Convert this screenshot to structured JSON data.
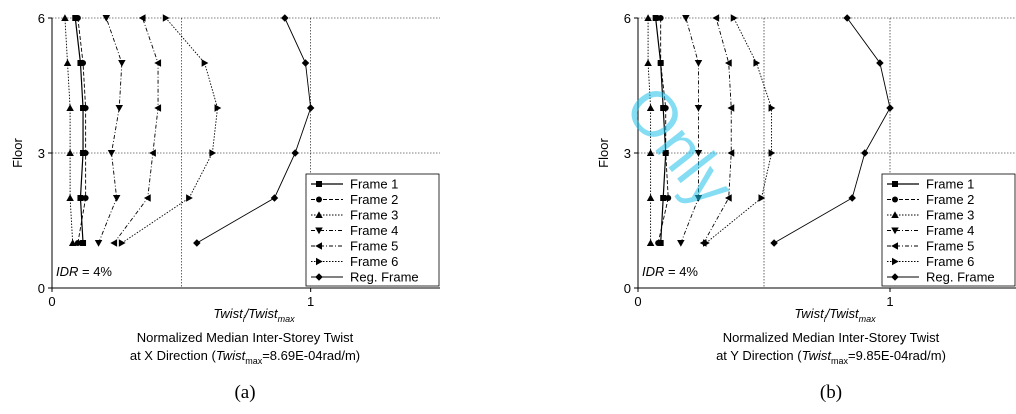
{
  "watermark": "Only",
  "chart_data": [
    {
      "type": "line",
      "panel_caption": "(a)",
      "ylabel": "Floor",
      "xlabel_main": "Twist",
      "xlabel_sub": "i",
      "xlabel_den": "/Twist",
      "xlabel_den_sub": "max",
      "title_line1": "Normalized Median Inter-Storey Twist",
      "title_line2_prefix": "at X Direction (",
      "title_line2_var": "Twist",
      "title_line2_sub": "max",
      "title_line2_suffix": "=8.69E-04rad/m)",
      "annotation_var": "IDR",
      "annotation_value": " = 4%",
      "xlim": [
        0,
        1.5
      ],
      "ylim": [
        0,
        6
      ],
      "x_ticks": [
        0,
        1
      ],
      "y_ticks": [
        0,
        3,
        6
      ],
      "grid_x": [
        0.5,
        1
      ],
      "grid_y": [
        3,
        6
      ],
      "legend_position": "bottom-right",
      "series": [
        {
          "name": "Frame 1",
          "marker": "square",
          "dash": "solid",
          "x": [
            0.12,
            0.11,
            0.12,
            0.12,
            0.11,
            0.09
          ],
          "y": [
            1,
            2,
            3,
            4,
            5,
            6
          ]
        },
        {
          "name": "Frame 2",
          "marker": "circle",
          "dash": "dash",
          "x": [
            0.1,
            0.13,
            0.13,
            0.13,
            0.12,
            0.1
          ],
          "y": [
            1,
            2,
            3,
            4,
            5,
            6
          ]
        },
        {
          "name": "Frame 3",
          "marker": "triangle-up",
          "dash": "dot",
          "x": [
            0.08,
            0.07,
            0.07,
            0.07,
            0.06,
            0.05
          ],
          "y": [
            1,
            2,
            3,
            4,
            5,
            6
          ]
        },
        {
          "name": "Frame 4",
          "marker": "triangle-down",
          "dash": "dashdot",
          "x": [
            0.18,
            0.25,
            0.23,
            0.26,
            0.27,
            0.21
          ],
          "y": [
            1,
            2,
            3,
            4,
            5,
            6
          ]
        },
        {
          "name": "Frame 5",
          "marker": "triangle-left",
          "dash": "dashdot",
          "x": [
            0.24,
            0.37,
            0.39,
            0.41,
            0.41,
            0.35
          ],
          "y": [
            1,
            2,
            3,
            4,
            5,
            6
          ]
        },
        {
          "name": "Frame 6",
          "marker": "triangle-right",
          "dash": "dot",
          "x": [
            0.27,
            0.53,
            0.62,
            0.64,
            0.59,
            0.44
          ],
          "y": [
            1,
            2,
            3,
            4,
            5,
            6
          ]
        },
        {
          "name": "Reg. Frame",
          "marker": "diamond",
          "dash": "solid-thin",
          "x": [
            0.56,
            0.86,
            0.94,
            1.0,
            0.98,
            0.9
          ],
          "y": [
            1,
            2,
            3,
            4,
            5,
            6
          ]
        }
      ]
    },
    {
      "type": "line",
      "panel_caption": "(b)",
      "ylabel": "Floor",
      "xlabel_main": "Twist",
      "xlabel_sub": "i",
      "xlabel_den": "/Twist",
      "xlabel_den_sub": "max",
      "title_line1": "Normalized Median Inter-Storey Twist",
      "title_line2_prefix": "at Y Direction (",
      "title_line2_var": "Twist",
      "title_line2_sub": "max",
      "title_line2_suffix": "=9.85E-04rad/m)",
      "annotation_var": "IDR",
      "annotation_value": " = 4%",
      "xlim": [
        0,
        1.5
      ],
      "ylim": [
        0,
        6
      ],
      "x_ticks": [
        0,
        1
      ],
      "y_ticks": [
        0,
        3,
        6
      ],
      "grid_x": [
        0.5,
        1
      ],
      "grid_y": [
        3,
        6
      ],
      "legend_position": "bottom-right",
      "series": [
        {
          "name": "Frame 1",
          "marker": "square",
          "dash": "solid",
          "x": [
            0.09,
            0.1,
            0.11,
            0.1,
            0.09,
            0.07
          ],
          "y": [
            1,
            2,
            3,
            4,
            5,
            6
          ]
        },
        {
          "name": "Frame 2",
          "marker": "circle",
          "dash": "dash",
          "x": [
            0.08,
            0.12,
            0.11,
            0.11,
            0.09,
            0.09
          ],
          "y": [
            1,
            2,
            3,
            4,
            5,
            6
          ]
        },
        {
          "name": "Frame 3",
          "marker": "triangle-up",
          "dash": "dot",
          "x": [
            0.05,
            0.05,
            0.05,
            0.05,
            0.04,
            0.04
          ],
          "y": [
            1,
            2,
            3,
            4,
            5,
            6
          ]
        },
        {
          "name": "Frame 4",
          "marker": "triangle-down",
          "dash": "dashdot",
          "x": [
            0.17,
            0.24,
            0.24,
            0.24,
            0.24,
            0.19
          ],
          "y": [
            1,
            2,
            3,
            4,
            5,
            6
          ]
        },
        {
          "name": "Frame 5",
          "marker": "triangle-left",
          "dash": "dashdot",
          "x": [
            0.26,
            0.36,
            0.37,
            0.37,
            0.36,
            0.31
          ],
          "y": [
            1,
            2,
            3,
            4,
            5,
            6
          ]
        },
        {
          "name": "Frame 6",
          "marker": "triangle-right",
          "dash": "dot",
          "x": [
            0.27,
            0.49,
            0.53,
            0.53,
            0.47,
            0.38
          ],
          "y": [
            1,
            2,
            3,
            4,
            5,
            6
          ]
        },
        {
          "name": "Reg. Frame",
          "marker": "diamond",
          "dash": "solid-thin",
          "x": [
            0.54,
            0.85,
            0.9,
            1.0,
            0.96,
            0.83
          ],
          "y": [
            1,
            2,
            3,
            4,
            5,
            6
          ]
        }
      ]
    }
  ]
}
